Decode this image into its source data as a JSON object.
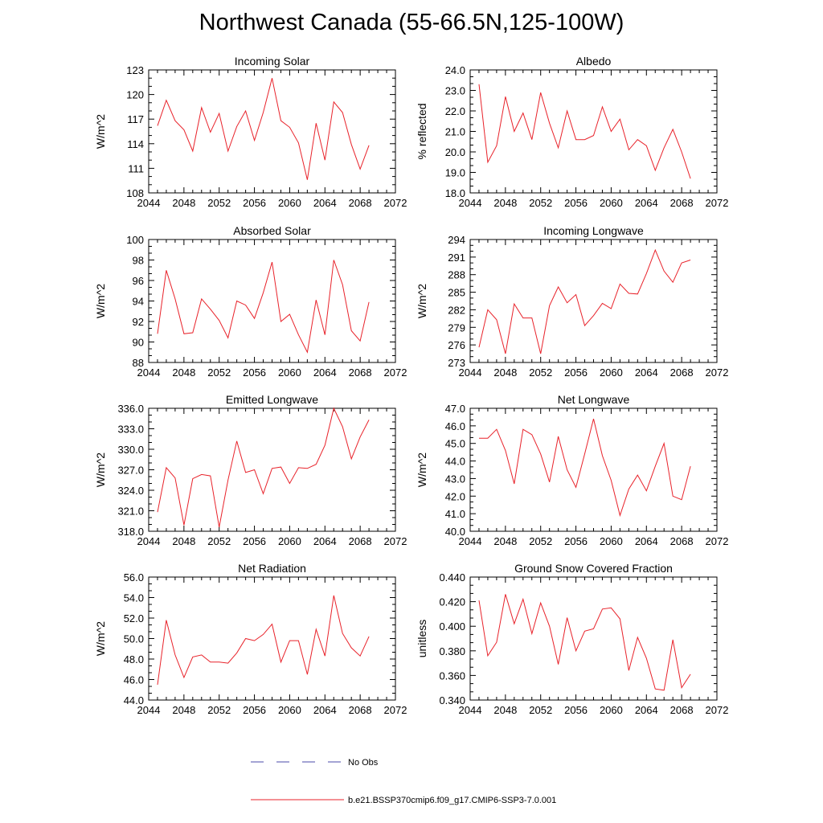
{
  "figure": {
    "title": "Northwest Canada (55-66.5N,125-100W)",
    "legend": [
      {
        "label": "No Obs",
        "style": "dashed",
        "color": "#4a4aa8"
      },
      {
        "label": "b.e21.BSSP370cmip6.f09_g17.CMIP6-SSP3-7.0.001",
        "style": "solid",
        "color": "#e8222a"
      }
    ]
  },
  "chart_data": [
    {
      "type": "line",
      "title": "Incoming Solar",
      "ylabel": "W/m^2",
      "xlim": [
        2044,
        2072
      ],
      "xticks": [
        2044,
        2048,
        2052,
        2056,
        2060,
        2064,
        2068,
        2072
      ],
      "ylim": [
        108,
        123
      ],
      "yticks": [
        108,
        111,
        114,
        117,
        120,
        123
      ],
      "ydecimals": 0,
      "series": [
        {
          "color": "#e8222a",
          "x": [
            2045,
            2046,
            2047,
            2048,
            2049,
            2050,
            2051,
            2052,
            2053,
            2054,
            2055,
            2056,
            2057,
            2058,
            2059,
            2060,
            2061,
            2062,
            2063,
            2064,
            2065,
            2066,
            2067,
            2068,
            2069
          ],
          "values": [
            116.2,
            119.3,
            116.8,
            115.7,
            113.1,
            118.4,
            115.4,
            117.7,
            113.1,
            116.1,
            118.0,
            114.4,
            117.8,
            122.0,
            116.8,
            116.0,
            114.1,
            109.6,
            116.5,
            112.0,
            119.1,
            117.8,
            113.9,
            110.9,
            113.8
          ]
        }
      ]
    },
    {
      "type": "line",
      "title": "Albedo",
      "ylabel": "% reflected",
      "xlim": [
        2044,
        2072
      ],
      "xticks": [
        2044,
        2048,
        2052,
        2056,
        2060,
        2064,
        2068,
        2072
      ],
      "ylim": [
        18.0,
        24.0
      ],
      "yticks": [
        18,
        19,
        20,
        21,
        22,
        23,
        24
      ],
      "ydecimals": 1,
      "series": [
        {
          "color": "#e8222a",
          "x": [
            2045,
            2046,
            2047,
            2048,
            2049,
            2050,
            2051,
            2052,
            2053,
            2054,
            2055,
            2056,
            2057,
            2058,
            2059,
            2060,
            2061,
            2062,
            2063,
            2064,
            2065,
            2066,
            2067,
            2068,
            2069
          ],
          "values": [
            23.3,
            19.5,
            20.3,
            22.7,
            21.0,
            21.9,
            20.6,
            22.9,
            21.4,
            20.2,
            22.0,
            20.6,
            20.6,
            20.8,
            22.2,
            21.0,
            21.6,
            20.1,
            20.6,
            20.3,
            19.1,
            20.2,
            21.1,
            20.0,
            18.7
          ]
        }
      ]
    },
    {
      "type": "line",
      "title": "Absorbed Solar",
      "ylabel": "W/m^2",
      "xlim": [
        2044,
        2072
      ],
      "xticks": [
        2044,
        2048,
        2052,
        2056,
        2060,
        2064,
        2068,
        2072
      ],
      "ylim": [
        88,
        100
      ],
      "yticks": [
        88,
        90,
        92,
        94,
        96,
        98,
        100
      ],
      "ydecimals": 0,
      "series": [
        {
          "color": "#e8222a",
          "x": [
            2045,
            2046,
            2047,
            2048,
            2049,
            2050,
            2051,
            2052,
            2053,
            2054,
            2055,
            2056,
            2057,
            2058,
            2059,
            2060,
            2061,
            2062,
            2063,
            2064,
            2065,
            2066,
            2067,
            2068,
            2069
          ],
          "values": [
            90.8,
            97.0,
            94.2,
            90.8,
            90.9,
            94.2,
            93.2,
            92.1,
            90.4,
            94.0,
            93.6,
            92.3,
            94.8,
            97.8,
            92.0,
            92.7,
            90.7,
            89.0,
            94.1,
            90.7,
            98.0,
            95.6,
            91.1,
            90.1,
            93.9
          ]
        }
      ]
    },
    {
      "type": "line",
      "title": "Incoming Longwave",
      "ylabel": "W/m^2",
      "xlim": [
        2044,
        2072
      ],
      "xticks": [
        2044,
        2048,
        2052,
        2056,
        2060,
        2064,
        2068,
        2072
      ],
      "ylim": [
        273,
        294
      ],
      "yticks": [
        273,
        276,
        279,
        282,
        285,
        288,
        291,
        294
      ],
      "ydecimals": 0,
      "series": [
        {
          "color": "#e8222a",
          "x": [
            2045,
            2046,
            2047,
            2048,
            2049,
            2050,
            2051,
            2052,
            2053,
            2054,
            2055,
            2056,
            2057,
            2058,
            2059,
            2060,
            2061,
            2062,
            2063,
            2064,
            2065,
            2066,
            2067,
            2068,
            2069
          ],
          "values": [
            275.6,
            282.0,
            280.3,
            274.5,
            283.0,
            280.6,
            280.6,
            274.5,
            282.7,
            285.9,
            283.2,
            284.6,
            279.3,
            281.0,
            283.1,
            282.2,
            286.4,
            284.8,
            284.7,
            288.2,
            292.2,
            288.6,
            286.7,
            290.0,
            290.5
          ]
        }
      ]
    },
    {
      "type": "line",
      "title": "Emitted Longwave",
      "ylabel": "W/m^2",
      "xlim": [
        2044,
        2072
      ],
      "xticks": [
        2044,
        2048,
        2052,
        2056,
        2060,
        2064,
        2068,
        2072
      ],
      "ylim": [
        318.0,
        336.0
      ],
      "yticks": [
        318,
        321,
        324,
        327,
        330,
        333,
        336
      ],
      "ydecimals": 1,
      "series": [
        {
          "color": "#e8222a",
          "x": [
            2045,
            2046,
            2047,
            2048,
            2049,
            2050,
            2051,
            2052,
            2053,
            2054,
            2055,
            2056,
            2057,
            2058,
            2059,
            2060,
            2061,
            2062,
            2063,
            2064,
            2065,
            2066,
            2067,
            2068,
            2069
          ],
          "values": [
            320.8,
            327.3,
            325.8,
            318.9,
            325.7,
            326.3,
            326.1,
            318.6,
            325.5,
            331.2,
            326.6,
            327.0,
            323.5,
            327.2,
            327.4,
            325.0,
            327.3,
            327.2,
            327.8,
            330.6,
            336.0,
            333.3,
            328.6,
            331.8,
            334.3
          ]
        }
      ]
    },
    {
      "type": "line",
      "title": "Net Longwave",
      "ylabel": "W/m^2",
      "xlim": [
        2044,
        2072
      ],
      "xticks": [
        2044,
        2048,
        2052,
        2056,
        2060,
        2064,
        2068,
        2072
      ],
      "ylim": [
        40.0,
        47.0
      ],
      "yticks": [
        40,
        41,
        42,
        43,
        44,
        45,
        46,
        47
      ],
      "ydecimals": 1,
      "series": [
        {
          "color": "#e8222a",
          "x": [
            2045,
            2046,
            2047,
            2048,
            2049,
            2050,
            2051,
            2052,
            2053,
            2054,
            2055,
            2056,
            2057,
            2058,
            2059,
            2060,
            2061,
            2062,
            2063,
            2064,
            2065,
            2066,
            2067,
            2068,
            2069
          ],
          "values": [
            45.3,
            45.3,
            45.8,
            44.6,
            42.7,
            45.8,
            45.5,
            44.4,
            42.8,
            45.4,
            43.5,
            42.5,
            44.4,
            46.4,
            44.3,
            42.9,
            40.9,
            42.4,
            43.2,
            42.3,
            43.7,
            45.0,
            42.0,
            41.8,
            43.7
          ]
        }
      ]
    },
    {
      "type": "line",
      "title": "Net Radiation",
      "ylabel": "W/m^2",
      "xlim": [
        2044,
        2072
      ],
      "xticks": [
        2044,
        2048,
        2052,
        2056,
        2060,
        2064,
        2068,
        2072
      ],
      "ylim": [
        44.0,
        56.0
      ],
      "yticks": [
        44,
        46,
        48,
        50,
        52,
        54,
        56
      ],
      "ydecimals": 1,
      "series": [
        {
          "color": "#e8222a",
          "x": [
            2045,
            2046,
            2047,
            2048,
            2049,
            2050,
            2051,
            2052,
            2053,
            2054,
            2055,
            2056,
            2057,
            2058,
            2059,
            2060,
            2061,
            2062,
            2063,
            2064,
            2065,
            2066,
            2067,
            2068,
            2069
          ],
          "values": [
            45.5,
            51.8,
            48.4,
            46.2,
            48.2,
            48.4,
            47.7,
            47.7,
            47.6,
            48.6,
            50.0,
            49.8,
            50.4,
            51.4,
            47.7,
            49.8,
            49.8,
            46.5,
            50.9,
            48.3,
            54.2,
            50.5,
            49.1,
            48.3,
            50.2
          ]
        }
      ]
    },
    {
      "type": "line",
      "title": "Ground Snow Covered Fraction",
      "ylabel": "unitless",
      "xlim": [
        2044,
        2072
      ],
      "xticks": [
        2044,
        2048,
        2052,
        2056,
        2060,
        2064,
        2068,
        2072
      ],
      "ylim": [
        0.34,
        0.44
      ],
      "yticks": [
        0.34,
        0.36,
        0.38,
        0.4,
        0.42,
        0.44
      ],
      "ydecimals": 3,
      "series": [
        {
          "color": "#e8222a",
          "x": [
            2045,
            2046,
            2047,
            2048,
            2049,
            2050,
            2051,
            2052,
            2053,
            2054,
            2055,
            2056,
            2057,
            2058,
            2059,
            2060,
            2061,
            2062,
            2063,
            2064,
            2065,
            2066,
            2067,
            2068,
            2069
          ],
          "values": [
            0.421,
            0.376,
            0.387,
            0.426,
            0.402,
            0.422,
            0.394,
            0.419,
            0.4,
            0.369,
            0.407,
            0.38,
            0.396,
            0.398,
            0.414,
            0.415,
            0.406,
            0.364,
            0.391,
            0.374,
            0.349,
            0.348,
            0.389,
            0.35,
            0.361
          ]
        }
      ]
    }
  ]
}
